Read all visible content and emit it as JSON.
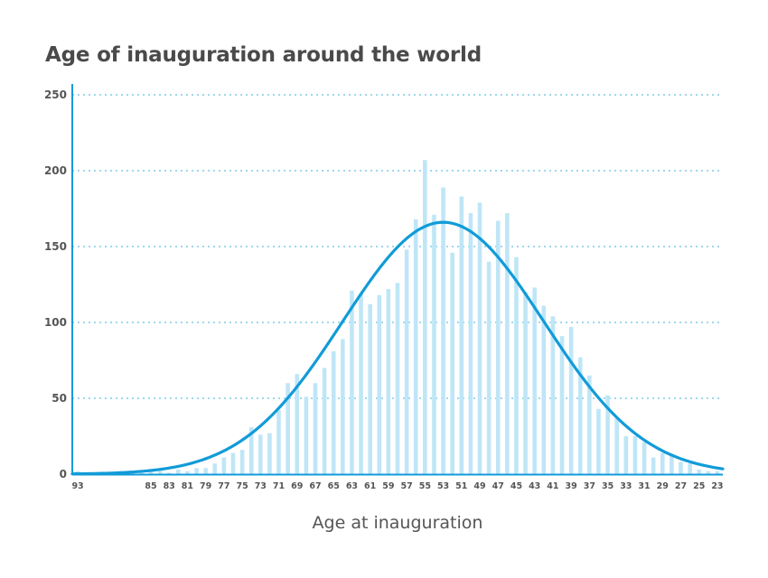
{
  "chart_data": {
    "type": "bar",
    "title": "Age of inauguration around the world",
    "xlabel": "Age at inauguration",
    "ylabel": "",
    "ylim": [
      0,
      250
    ],
    "yticks": [
      0,
      50,
      100,
      150,
      200,
      250
    ],
    "grid": true,
    "colors": {
      "bar": "#bfe6f7",
      "curve": "#119bd8",
      "grid": "#7fcbea",
      "axis": "#119bd8"
    },
    "x_tick_labels": [
      "93",
      "85",
      "83",
      "81",
      "79",
      "77",
      "75",
      "73",
      "71",
      "69",
      "67",
      "65",
      "63",
      "61",
      "59",
      "57",
      "55",
      "53",
      "51",
      "49",
      "47",
      "45",
      "43",
      "41",
      "39",
      "37",
      "35",
      "33",
      "31",
      "29",
      "27",
      "25",
      "23"
    ],
    "bars": [
      {
        "age": 93,
        "count": 2
      },
      {
        "age": 92,
        "count": 1
      },
      {
        "age": 91,
        "count": 1
      },
      {
        "age": 89,
        "count": 1
      },
      {
        "age": 88,
        "count": 1
      },
      {
        "age": 87,
        "count": 2
      },
      {
        "age": 86,
        "count": 1
      },
      {
        "age": 85,
        "count": 2
      },
      {
        "age": 84,
        "count": 2
      },
      {
        "age": 83,
        "count": 1
      },
      {
        "age": 82,
        "count": 3
      },
      {
        "age": 81,
        "count": 2
      },
      {
        "age": 80,
        "count": 4
      },
      {
        "age": 79,
        "count": 4
      },
      {
        "age": 78,
        "count": 7
      },
      {
        "age": 77,
        "count": 11
      },
      {
        "age": 76,
        "count": 14
      },
      {
        "age": 75,
        "count": 16
      },
      {
        "age": 74,
        "count": 31
      },
      {
        "age": 73,
        "count": 26
      },
      {
        "age": 72,
        "count": 27
      },
      {
        "age": 71,
        "count": 42
      },
      {
        "age": 70,
        "count": 60
      },
      {
        "age": 69,
        "count": 66
      },
      {
        "age": 68,
        "count": 51
      },
      {
        "age": 67,
        "count": 60
      },
      {
        "age": 66,
        "count": 70
      },
      {
        "age": 65,
        "count": 81
      },
      {
        "age": 64,
        "count": 89
      },
      {
        "age": 63,
        "count": 121
      },
      {
        "age": 62,
        "count": 119
      },
      {
        "age": 61,
        "count": 112
      },
      {
        "age": 60,
        "count": 118
      },
      {
        "age": 59,
        "count": 122
      },
      {
        "age": 58,
        "count": 126
      },
      {
        "age": 57,
        "count": 148
      },
      {
        "age": 56,
        "count": 168
      },
      {
        "age": 55,
        "count": 207
      },
      {
        "age": 54,
        "count": 171
      },
      {
        "age": 53,
        "count": 189
      },
      {
        "age": 52,
        "count": 146
      },
      {
        "age": 51,
        "count": 183
      },
      {
        "age": 50,
        "count": 172
      },
      {
        "age": 49,
        "count": 179
      },
      {
        "age": 48,
        "count": 140
      },
      {
        "age": 47,
        "count": 167
      },
      {
        "age": 46,
        "count": 172
      },
      {
        "age": 45,
        "count": 143
      },
      {
        "age": 44,
        "count": 120
      },
      {
        "age": 43,
        "count": 123
      },
      {
        "age": 42,
        "count": 111
      },
      {
        "age": 41,
        "count": 104
      },
      {
        "age": 40,
        "count": 91
      },
      {
        "age": 39,
        "count": 97
      },
      {
        "age": 38,
        "count": 77
      },
      {
        "age": 37,
        "count": 65
      },
      {
        "age": 36,
        "count": 43
      },
      {
        "age": 35,
        "count": 52
      },
      {
        "age": 34,
        "count": 37
      },
      {
        "age": 33,
        "count": 25
      },
      {
        "age": 32,
        "count": 25
      },
      {
        "age": 31,
        "count": 21
      },
      {
        "age": 30,
        "count": 11
      },
      {
        "age": 29,
        "count": 14
      },
      {
        "age": 28,
        "count": 12
      },
      {
        "age": 27,
        "count": 8
      },
      {
        "age": 26,
        "count": 7
      },
      {
        "age": 25,
        "count": 3
      },
      {
        "age": 24,
        "count": 2
      },
      {
        "age": 23,
        "count": 2
      }
    ],
    "curve": {
      "type": "normal-fit",
      "peak": 166,
      "mean_age": 53,
      "sd_age": 11
    }
  }
}
